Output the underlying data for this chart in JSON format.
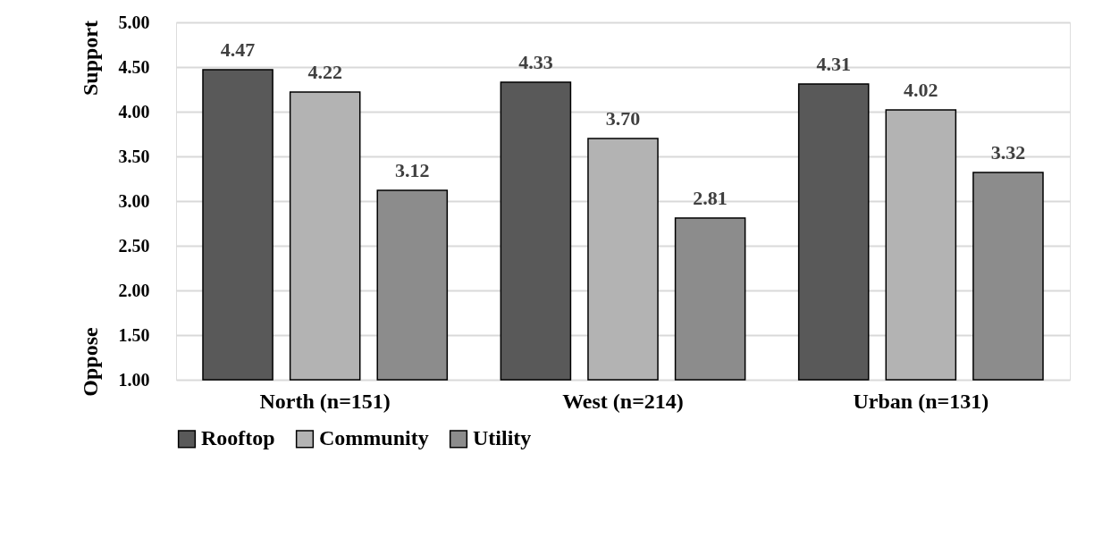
{
  "chart_data": {
    "type": "bar",
    "categories": [
      "North (n=151)",
      "West (n=214)",
      "Urban (n=131)"
    ],
    "series": [
      {
        "name": "Rooftop",
        "color": "#595959",
        "values": [
          4.47,
          4.33,
          4.31
        ],
        "value_labels": [
          "4.47",
          "4.33",
          "4.31"
        ]
      },
      {
        "name": "Community",
        "color": "#b3b3b3",
        "values": [
          4.22,
          3.7,
          4.02
        ],
        "value_labels": [
          "4.22",
          "3.70",
          "4.02"
        ]
      },
      {
        "name": "Utility",
        "color": "#8c8c8c",
        "values": [
          3.12,
          2.81,
          3.32
        ],
        "value_labels": [
          "3.12",
          "2.81",
          "3.32"
        ]
      }
    ],
    "ylim": [
      1,
      5
    ],
    "yticks": [
      {
        "value": 1,
        "label": "1.00"
      },
      {
        "value": 1.5,
        "label": "1.50"
      },
      {
        "value": 2,
        "label": "2.00"
      },
      {
        "value": 2.5,
        "label": "2.50"
      },
      {
        "value": 3,
        "label": "3.00"
      },
      {
        "value": 3.5,
        "label": "3.50"
      },
      {
        "value": 4,
        "label": "4.00"
      },
      {
        "value": 4.5,
        "label": "4.50"
      },
      {
        "value": 5,
        "label": "5.00"
      }
    ],
    "annotations": [
      "Oppose",
      "Support"
    ],
    "grid": "y",
    "legend": "bottom"
  }
}
